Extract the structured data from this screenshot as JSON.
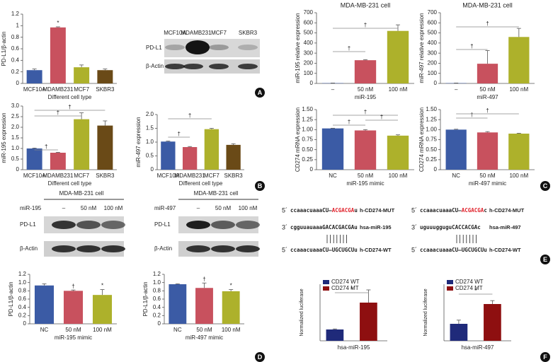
{
  "chart_data": [
    {
      "type": "bar",
      "ylabel": "PD-L1/β-actin",
      "xlabel": "Different cell type",
      "categories": [
        "MCF10A",
        "MDAMB231",
        "MCF7",
        "SKBR3"
      ],
      "values": [
        0.23,
        0.97,
        0.28,
        0.23
      ],
      "errors": [
        0.02,
        0.01,
        0.04,
        0.02
      ],
      "colors": [
        "#3b5ba5",
        "#c8515e",
        "#adb12b",
        "#6a4a17"
      ],
      "ylim": [
        0,
        1.2
      ],
      "yticks": [
        0,
        0.2,
        0.4,
        0.6,
        0.8,
        1,
        1.2
      ],
      "annotations": [
        "*"
      ]
    },
    {
      "type": "bar",
      "ylabel": "miR-195 expression",
      "xlabel": "Different cell type",
      "categories": [
        "MCF10A",
        "MDAMB231",
        "MCF7",
        "SKBR3"
      ],
      "values": [
        1.0,
        0.8,
        2.38,
        2.08
      ],
      "errors": [
        0.02,
        0.02,
        0.3,
        0.22
      ],
      "colors": [
        "#3b5ba5",
        "#c8515e",
        "#adb12b",
        "#6a4a17"
      ],
      "ylim": [
        0,
        3
      ],
      "yticks": [
        0,
        0.5,
        {
          "value": 1,
          "label": "1.0"
        },
        1.5,
        {
          "value": 2,
          "label": "2.0"
        },
        2.5,
        {
          "value": 3,
          "label": "3.0"
        }
      ],
      "annotations": [
        "†",
        "†",
        "†"
      ]
    },
    {
      "type": "bar",
      "ylabel": "miR-497 expression",
      "xlabel": "Different cell type",
      "categories": [
        "MCF10A",
        "MDAMB231",
        "MCF7",
        "SKBR3"
      ],
      "values": [
        1.02,
        0.82,
        1.47,
        0.9
      ],
      "errors": [
        0.02,
        0.02,
        0.03,
        0.04
      ],
      "colors": [
        "#3b5ba5",
        "#c8515e",
        "#adb12b",
        "#6a4a17"
      ],
      "ylim": [
        0,
        2
      ],
      "yticks": [
        0,
        0.5,
        {
          "value": 1,
          "label": "1.0"
        },
        1.5,
        {
          "value": 2,
          "label": "2.0"
        }
      ],
      "annotations": [
        "†",
        "†"
      ]
    },
    {
      "type": "bar",
      "title": "MDA-MB-231 cell",
      "ylabel": "miR-195 relative expression",
      "xlabel": "miR-195",
      "categories": [
        "–",
        "50 nM",
        "100 nM"
      ],
      "values": [
        3,
        230,
        520
      ],
      "errors": [
        1,
        5,
        60
      ],
      "colors": [
        "#3b5ba5",
        "#c8515e",
        "#adb12b"
      ],
      "ylim": [
        0,
        700
      ],
      "yticks": [
        0,
        100,
        200,
        300,
        400,
        500,
        600,
        700
      ],
      "annotations": [
        "†",
        "†"
      ]
    },
    {
      "type": "bar",
      "title": "MDA-MB-231 cell",
      "ylabel": "miR-497 relative expression",
      "xlabel": "miR-497",
      "categories": [
        "–",
        "50 nM",
        "100 nM"
      ],
      "values": [
        3,
        195,
        460
      ],
      "errors": [
        1,
        130,
        85
      ],
      "colors": [
        "#3b5ba5",
        "#c8515e",
        "#adb12b"
      ],
      "ylim": [
        0,
        700
      ],
      "yticks": [
        0,
        100,
        200,
        300,
        400,
        500,
        600,
        700
      ],
      "annotations": [
        "†",
        "†"
      ]
    },
    {
      "type": "bar",
      "ylabel": "CD274 mRNA expression",
      "xlabel": "miR-195 mimic",
      "categories": [
        "NC",
        "50 nM",
        "100 nM"
      ],
      "values": [
        1.03,
        0.98,
        0.85
      ],
      "errors": [
        0.005,
        0.02,
        0.02
      ],
      "colors": [
        "#3b5ba5",
        "#c8515e",
        "#adb12b"
      ],
      "ylim": [
        0,
        1.5
      ],
      "yticks": [
        0,
        0.25,
        {
          "value": 0.5,
          "label": "0.50"
        },
        0.75,
        {
          "value": 1,
          "label": "1.00"
        },
        1.25,
        {
          "value": 1.5,
          "label": "1.50"
        }
      ],
      "annotations": [
        "†",
        "†",
        "†"
      ]
    },
    {
      "type": "bar",
      "ylabel": "CD274 mRNA expression",
      "xlabel": "miR-497 mimic",
      "categories": [
        "NC",
        "50 nM",
        "100 nM"
      ],
      "values": [
        1.0,
        0.93,
        0.9
      ],
      "errors": [
        0.01,
        0.02,
        0.01
      ],
      "colors": [
        "#3b5ba5",
        "#c8515e",
        "#adb12b"
      ],
      "ylim": [
        0,
        1.5
      ],
      "yticks": [
        0,
        0.25,
        {
          "value": 0.5,
          "label": "0.50"
        },
        0.75,
        {
          "value": 1,
          "label": "1.00"
        },
        1.25,
        {
          "value": 1.5,
          "label": "1.50"
        }
      ],
      "annotations": [
        "†",
        "†"
      ]
    },
    {
      "type": "bar",
      "ylabel": "PD-L1/β-actin",
      "xlabel": "miR-195 mimic",
      "categories": [
        "NC",
        "50 nM",
        "100 nM"
      ],
      "values": [
        0.93,
        0.8,
        0.7
      ],
      "errors": [
        0.04,
        0.02,
        0.13
      ],
      "colors": [
        "#3b5ba5",
        "#c8515e",
        "#adb12b"
      ],
      "ylim": [
        0,
        1.2
      ],
      "yticks": [
        0,
        0.2,
        0.4,
        0.6,
        0.8,
        {
          "value": 1,
          "label": "1.0"
        },
        1.2
      ],
      "annotations": [
        "†",
        "*"
      ]
    },
    {
      "type": "bar",
      "ylabel": "PD-L1/β-actin",
      "xlabel": "miR-497 mimic",
      "categories": [
        "NC",
        "50 nM",
        "100 nM"
      ],
      "values": [
        0.96,
        0.87,
        0.79
      ],
      "errors": [
        0.01,
        0.12,
        0.04
      ],
      "colors": [
        "#3b5ba5",
        "#c8515e",
        "#adb12b"
      ],
      "ylim": [
        0,
        1.2
      ],
      "yticks": [
        0,
        0.2,
        0.4,
        0.6,
        0.8,
        {
          "value": 1,
          "label": "1.0"
        },
        1.2
      ],
      "annotations": [
        "†",
        "*"
      ]
    },
    {
      "type": "grouped",
      "ylabel": "Normalized luciferase",
      "categories": [
        "hsa-miR-195"
      ],
      "series": [
        {
          "name": "CD274 WT",
          "color": "#1f2a7a",
          "values": [
            0.4
          ],
          "errors": [
            0.02
          ]
        },
        {
          "name": "CD274 MT",
          "color": "#8e0f10",
          "values": [
            1.35
          ],
          "errors": [
            0.45
          ]
        }
      ],
      "ylim": [
        0,
        2
      ],
      "annotations": [
        "*"
      ]
    },
    {
      "type": "grouped",
      "ylabel": "Normalized luciferase",
      "categories": [
        "hsa-miR-497"
      ],
      "series": [
        {
          "name": "CD274 WT",
          "color": "#1f2a7a",
          "values": [
            0.6
          ],
          "errors": [
            0.13
          ]
        },
        {
          "name": "CD274 MT",
          "color": "#8e0f10",
          "values": [
            1.3
          ],
          "errors": [
            0.12
          ]
        }
      ],
      "ylim": [
        0,
        2
      ],
      "annotations": [
        "*"
      ]
    }
  ],
  "blot_a": {
    "lanes": [
      "MCF10A",
      "MDAMB231",
      "MCF7",
      "SKBR3"
    ],
    "rows": [
      "PD-L1",
      "β-Actin"
    ]
  },
  "blot_d": [
    {
      "title": "MDA-MB-231 cell",
      "treatment": "miR-195",
      "lanes": [
        "–",
        "50 nM",
        "100 nM"
      ],
      "rows": [
        "PD-L1",
        "β-Actin"
      ]
    },
    {
      "title": "MDA-MB-231 cell",
      "treatment": "miR-497",
      "lanes": [
        "–",
        "50 nM",
        "100 nM"
      ],
      "rows": [
        "PD-L1",
        "β-Actin"
      ]
    }
  ],
  "sequences": [
    [
      {
        "end": "5´",
        "parts": [
          "ccaaacuaaaCU—",
          "ACGACGA",
          "u"
        ],
        "label": "h-CD274-MUT"
      },
      {
        "end": "3´",
        "parts": [
          "cgguuauaaaGACACGACGAu"
        ],
        "label": "hsa-miR-195"
      },
      {
        "end": "5´",
        "parts": [
          "ccaaacuaaaCU—UGCUGCUu"
        ],
        "label": "h-CD274-WT"
      }
    ],
    [
      {
        "end": "5´",
        "parts": [
          "ccaaacuaaaCU—",
          "ACGACGA",
          "c"
        ],
        "label": "h-CD274-MUT"
      },
      {
        "end": "3´",
        "parts": [
          "uguuugguguCACCACGAc"
        ],
        "label": "hsa-miR-497"
      },
      {
        "end": "5´",
        "parts": [
          "ccaaacuaaaCU—UGCUGCUu"
        ],
        "label": "h-CD274-WT"
      }
    ]
  ],
  "panels": [
    "A",
    "B",
    "C",
    "D",
    "E",
    "F"
  ]
}
